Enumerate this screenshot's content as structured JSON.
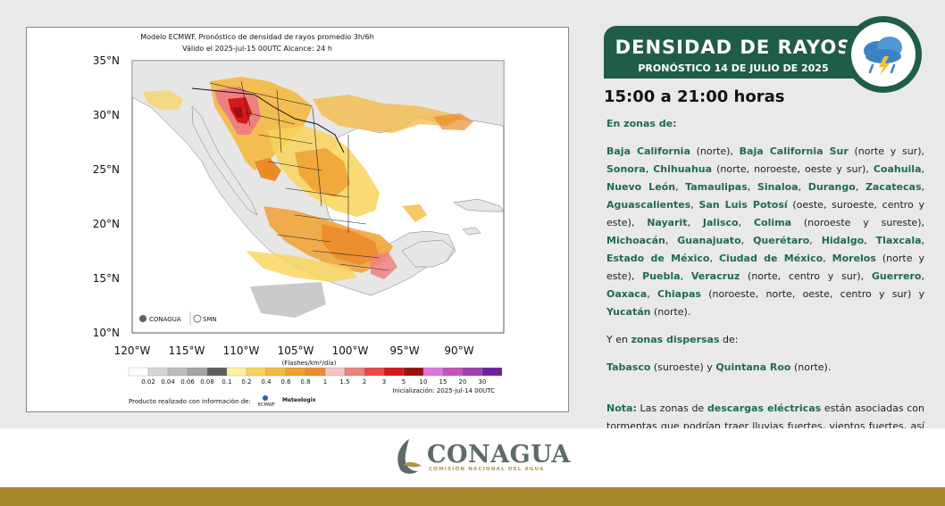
{
  "map": {
    "title": "Modelo ECMWF. Pronóstico de densidad de rayos promedio 3h/6h",
    "subtitle": "Válido el 2025-jul-15 00UTC   Alcance: 24 h",
    "lat_labels": [
      "35°N",
      "30°N",
      "25°N",
      "20°N",
      "15°N",
      "10°N"
    ],
    "lon_labels": [
      "120°W",
      "115°W",
      "110°W",
      "105°W",
      "100°W",
      "95°W",
      "90°W"
    ],
    "units": "(Flashes/km²/día)",
    "colorbar": {
      "colors": [
        "#ffffff",
        "#d6d6d6",
        "#bdbdbd",
        "#a3a3a3",
        "#5e5e5e",
        "#fff3a0",
        "#f9d35a",
        "#f5b840",
        "#f0a030",
        "#ec8a2a",
        "#f7c4c4",
        "#ee8080",
        "#e84848",
        "#d61818",
        "#9a0f0f",
        "#e074d8",
        "#c850c0",
        "#a040b0",
        "#7020a0"
      ],
      "labels": [
        "0.02",
        "0.04",
        "0.06",
        "0.08",
        "0.1",
        "0.2",
        "0.4",
        "0.6",
        "0.8",
        "1",
        "1.5",
        "2",
        "3",
        "5",
        "10",
        "15",
        "20",
        "30"
      ]
    },
    "credit": "Producto realizado con información de:",
    "init_text": "Inicialización: 2025-jul-14 00UTC",
    "logos": {
      "conagua": "CONAGUA",
      "smn": "SMN",
      "ecmwf": "ECMWF",
      "meteologix": "Meteologix"
    }
  },
  "banner": {
    "title": "DENSIDAD DE RAYOS",
    "subtitle": "PRONÓSTICO 14 DE JULIO DE 2025",
    "icon": "storm-cloud-icon"
  },
  "time_heading": "15:00 a 21:00 horas",
  "zones_intro": "En zonas de:",
  "zones": [
    {
      "name": "Baja California",
      "detail": " (norte), "
    },
    {
      "name": "Baja California Sur",
      "detail": " (norte y sur), "
    },
    {
      "name": "Sonora",
      "detail": ", "
    },
    {
      "name": "Chihuahua",
      "detail": " (norte, noroeste, oeste y sur), "
    },
    {
      "name": "Coahuila",
      "detail": ", "
    },
    {
      "name": "Nuevo León",
      "detail": ", "
    },
    {
      "name": "Tamaulipas",
      "detail": ", "
    },
    {
      "name": "Sinaloa",
      "detail": ", "
    },
    {
      "name": "Durango",
      "detail": ", "
    },
    {
      "name": "Zacatecas",
      "detail": ", "
    },
    {
      "name": "Aguascalientes",
      "detail": ", "
    },
    {
      "name": "San Luis Potosí",
      "detail": " (oeste, suroeste, centro y este), "
    },
    {
      "name": "Nayarit",
      "detail": ", "
    },
    {
      "name": "Jalisco",
      "detail": ", "
    },
    {
      "name": "Colima",
      "detail": " (noroeste y sureste), "
    },
    {
      "name": "Michoacán",
      "detail": ", "
    },
    {
      "name": "Guanajuato",
      "detail": ", "
    },
    {
      "name": "Querétaro",
      "detail": ", "
    },
    {
      "name": "Hidalgo",
      "detail": ", "
    },
    {
      "name": "Tlaxcala",
      "detail": ", "
    },
    {
      "name": "Estado de México",
      "detail": ", "
    },
    {
      "name": "Ciudad de México",
      "detail": ", "
    },
    {
      "name": "Morelos",
      "detail": " (norte y este), "
    },
    {
      "name": "Puebla",
      "detail": ", "
    },
    {
      "name": "Veracruz",
      "detail": " (norte, centro y sur), "
    },
    {
      "name": "Guerrero",
      "detail": ", "
    },
    {
      "name": "Oaxaca",
      "detail": ", "
    },
    {
      "name": "Chiapas",
      "detail": " (noroeste, norte, oeste, centro y sur) y "
    },
    {
      "name": "Yucatán",
      "detail": " (norte)."
    }
  ],
  "dispersed": {
    "prefix": "Y en ",
    "highlight": "zonas dispersas",
    "suffix": " de:",
    "items": [
      {
        "name": "Tabasco",
        "detail": " (suroeste) y "
      },
      {
        "name": "Quintana Roo",
        "detail": " (norte)."
      }
    ]
  },
  "note": {
    "label": "Nota:",
    "text1": " Las zonas de ",
    "highlight": "descargas eléctricas",
    "text2": " están asociadas con tormentas que podrían traer lluvias fuertes, vientos fuertes, así como caída de granizo."
  },
  "footer": {
    "logo_title": "CONAGUA",
    "logo_subtitle": "COMISIÓN NACIONAL DEL AGUA"
  }
}
